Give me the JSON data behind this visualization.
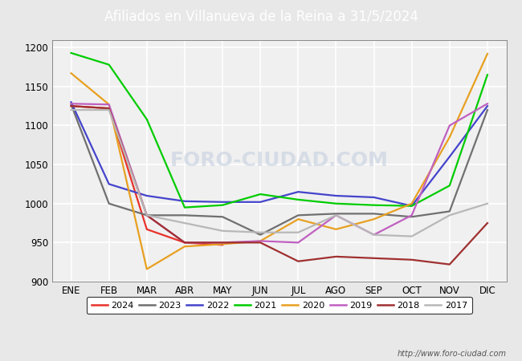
{
  "title": "Afiliados en Villanueva de la Reina a 31/5/2024",
  "title_bg_color": "#5b8dd9",
  "title_text_color": "white",
  "ylim": [
    900,
    1210
  ],
  "yticks": [
    900,
    950,
    1000,
    1050,
    1100,
    1150,
    1200
  ],
  "months": [
    "ENE",
    "FEB",
    "MAR",
    "ABR",
    "MAY",
    "JUN",
    "JUL",
    "AGO",
    "SEP",
    "OCT",
    "NOV",
    "DIC"
  ],
  "watermark": "FORO-CIUDAD.COM",
  "url": "http://www.foro-ciudad.com",
  "series": {
    "2024": {
      "color": "#e8312a",
      "data": [
        1125,
        1122,
        967,
        950,
        947,
        null,
        null,
        null,
        null,
        null,
        null,
        null
      ]
    },
    "2023": {
      "color": "#707070",
      "data": [
        1127,
        1000,
        985,
        985,
        983,
        960,
        985,
        987,
        987,
        983,
        990,
        1120
      ]
    },
    "2022": {
      "color": "#4444cc",
      "data": [
        1130,
        1025,
        1010,
        1003,
        1002,
        1002,
        1015,
        1010,
        1008,
        997,
        1060,
        1125
      ]
    },
    "2021": {
      "color": "#00cc00",
      "data": [
        1193,
        1178,
        1108,
        995,
        998,
        1012,
        1005,
        1000,
        998,
        997,
        1023,
        1165
      ]
    },
    "2020": {
      "color": "#e8a020",
      "data": [
        1167,
        1127,
        916,
        945,
        948,
        952,
        980,
        967,
        980,
        1000,
        1085,
        1192
      ]
    },
    "2019": {
      "color": "#c060c0",
      "data": [
        1128,
        1127,
        985,
        950,
        950,
        952,
        950,
        985,
        960,
        985,
        1100,
        1128
      ]
    },
    "2018": {
      "color": "#a03030",
      "data": [
        1125,
        1122,
        985,
        950,
        950,
        950,
        926,
        932,
        930,
        928,
        922,
        975
      ]
    },
    "2017": {
      "color": "#b8b8b8",
      "data": [
        1120,
        1120,
        985,
        975,
        965,
        963,
        963,
        985,
        960,
        958,
        985,
        1000
      ]
    }
  },
  "legend_order": [
    "2024",
    "2023",
    "2022",
    "2021",
    "2020",
    "2019",
    "2018",
    "2017"
  ],
  "figure_bg_color": "#e8e8e8",
  "plot_bg_color": "#f0f0f0",
  "grid_color": "white",
  "legend_bg_color": "white",
  "legend_edge_color": "#333333"
}
